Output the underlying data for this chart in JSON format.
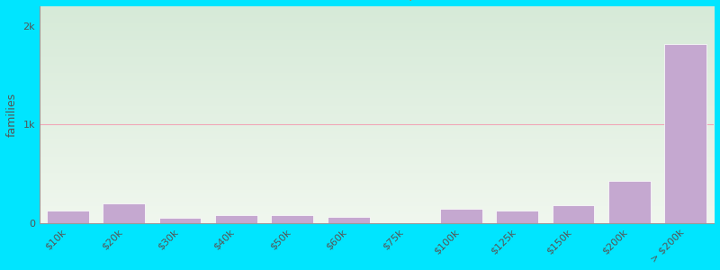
{
  "ylabel": "families",
  "categories": [
    "$10k",
    "$20k",
    "$30k",
    "$40k",
    "$50k",
    "$60k",
    "$75k",
    "$100k",
    "$125k",
    "$150k",
    "$200k",
    "> $200k"
  ],
  "values": [
    120,
    200,
    55,
    75,
    75,
    60,
    0,
    140,
    120,
    175,
    430,
    1820
  ],
  "bar_color": "#c5a8d0",
  "bar_edge_color": "#ffffff",
  "background_color": "#00e5ff",
  "grad_top": "#d6ead8",
  "grad_bottom": "#f0f7ee",
  "grid_color": "#f0a8b8",
  "ylim": [
    0,
    2200
  ],
  "yticks": [
    0,
    1000,
    2000
  ],
  "ytick_labels": [
    "0",
    "1k",
    "2k"
  ],
  "title_fontsize": 14,
  "subtitle_fontsize": 11,
  "subtitle_color": "#c87d3a",
  "ylabel_fontsize": 9,
  "tick_fontsize": 8,
  "tick_color": "#555555",
  "title_color": "#1a1a1a"
}
